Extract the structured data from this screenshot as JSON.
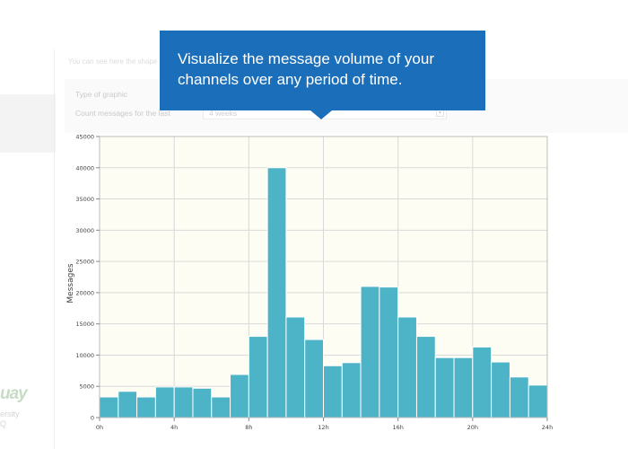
{
  "background": {
    "intro_text": "You can see here the shape",
    "form": {
      "type_label": "Type of graphic",
      "count_label": "Count messages for the last",
      "period_value": "4 weeks"
    },
    "brand": {
      "logo_text": "uay",
      "sub_line1": "ersity",
      "sub_line2": "Q"
    }
  },
  "callout": {
    "text": "Visualize the message volume of your channels over any period of time.",
    "color": "#1b6fba"
  },
  "chart_data": {
    "type": "bar",
    "title": "",
    "xlabel": "",
    "ylabel": "Messages",
    "xlim": [
      0,
      24
    ],
    "ylim": [
      0,
      45000
    ],
    "x_ticks": [
      "0h",
      "4h",
      "8h",
      "12h",
      "16h",
      "20h",
      "24h"
    ],
    "y_ticks": [
      0,
      5000,
      10000,
      15000,
      20000,
      25000,
      30000,
      35000,
      40000,
      45000
    ],
    "grid": true,
    "bar_color": "#4db3c6",
    "plot_background": "#fefdf3",
    "categories": [
      "0h",
      "1h",
      "2h",
      "3h",
      "4h",
      "5h",
      "6h",
      "7h",
      "8h",
      "9h",
      "10h",
      "11h",
      "12h",
      "13h",
      "14h",
      "15h",
      "16h",
      "17h",
      "18h",
      "19h",
      "20h",
      "21h",
      "22h",
      "23h"
    ],
    "values": [
      3300,
      4200,
      3300,
      4900,
      4900,
      4700,
      3300,
      6900,
      13000,
      40000,
      16100,
      12500,
      8300,
      8800,
      21000,
      20900,
      16100,
      13000,
      9600,
      9600,
      11300,
      8900,
      6500,
      5200
    ]
  }
}
